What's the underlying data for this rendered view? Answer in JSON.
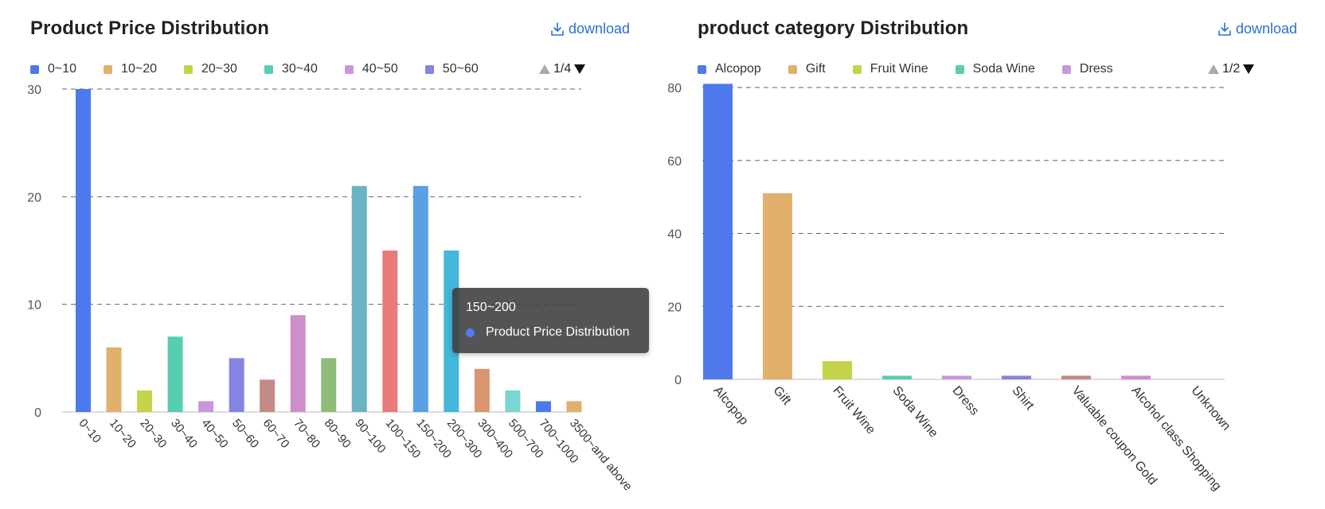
{
  "chart_data": [
    {
      "type": "bar",
      "title": "Product Price Distribution",
      "download_label": "download",
      "legend": [
        "0~10",
        "10~20",
        "20~30",
        "30~40",
        "40~50",
        "50~60"
      ],
      "legend_page": "1/4",
      "categories": [
        "0~10",
        "10~20",
        "20~30",
        "30~40",
        "40~50",
        "50~60",
        "60~70",
        "70~80",
        "80~90",
        "90~100",
        "100~150",
        "150~200",
        "200~300",
        "300~400",
        "500~700",
        "700~1000",
        "3500~and above"
      ],
      "values": [
        30,
        6,
        2,
        7,
        1,
        5,
        3,
        9,
        5,
        21,
        15,
        21,
        15,
        4,
        2,
        1,
        1
      ],
      "colors": [
        "#4e79ec",
        "#e1b06c",
        "#c5d34a",
        "#57cdb2",
        "#c996dc",
        "#8584e2",
        "#c48a85",
        "#cf8ec9",
        "#8fbc78",
        "#6ab3c2",
        "#e97b7b",
        "#5b9fe4",
        "#43b6d9",
        "#da9670",
        "#79d6d2",
        "#4e79ec",
        "#e1b06c"
      ],
      "ylim": [
        0,
        30
      ],
      "yticks": [
        0,
        10,
        20,
        30
      ],
      "grid": true,
      "legend_position": "top-left",
      "tooltip": {
        "category": "150~200",
        "series": "Product Price Distribution"
      }
    },
    {
      "type": "bar",
      "title": "product category Distribution",
      "download_label": "download",
      "legend": [
        "Alcopop",
        "Gift",
        "Fruit Wine",
        "Soda Wine",
        "Dress"
      ],
      "legend_page": "1/2",
      "categories": [
        "Alcopop",
        "Gift",
        "Fruit Wine",
        "Soda Wine",
        "Dress",
        "Shirt",
        "Valuable coupon Gold",
        "Alcohol class Shopping",
        "Unknown"
      ],
      "values": [
        81,
        51,
        5,
        1,
        1,
        1,
        1,
        1,
        0
      ],
      "colors": [
        "#4e79ec",
        "#e1b06c",
        "#c5d34a",
        "#57cdb2",
        "#c996dc",
        "#8584e2",
        "#c48a85",
        "#cf8ec9",
        "#8fbc78"
      ],
      "ylim": [
        0,
        80
      ],
      "yticks": [
        0,
        20,
        40,
        60,
        80
      ],
      "grid": true,
      "legend_position": "top-left"
    }
  ]
}
